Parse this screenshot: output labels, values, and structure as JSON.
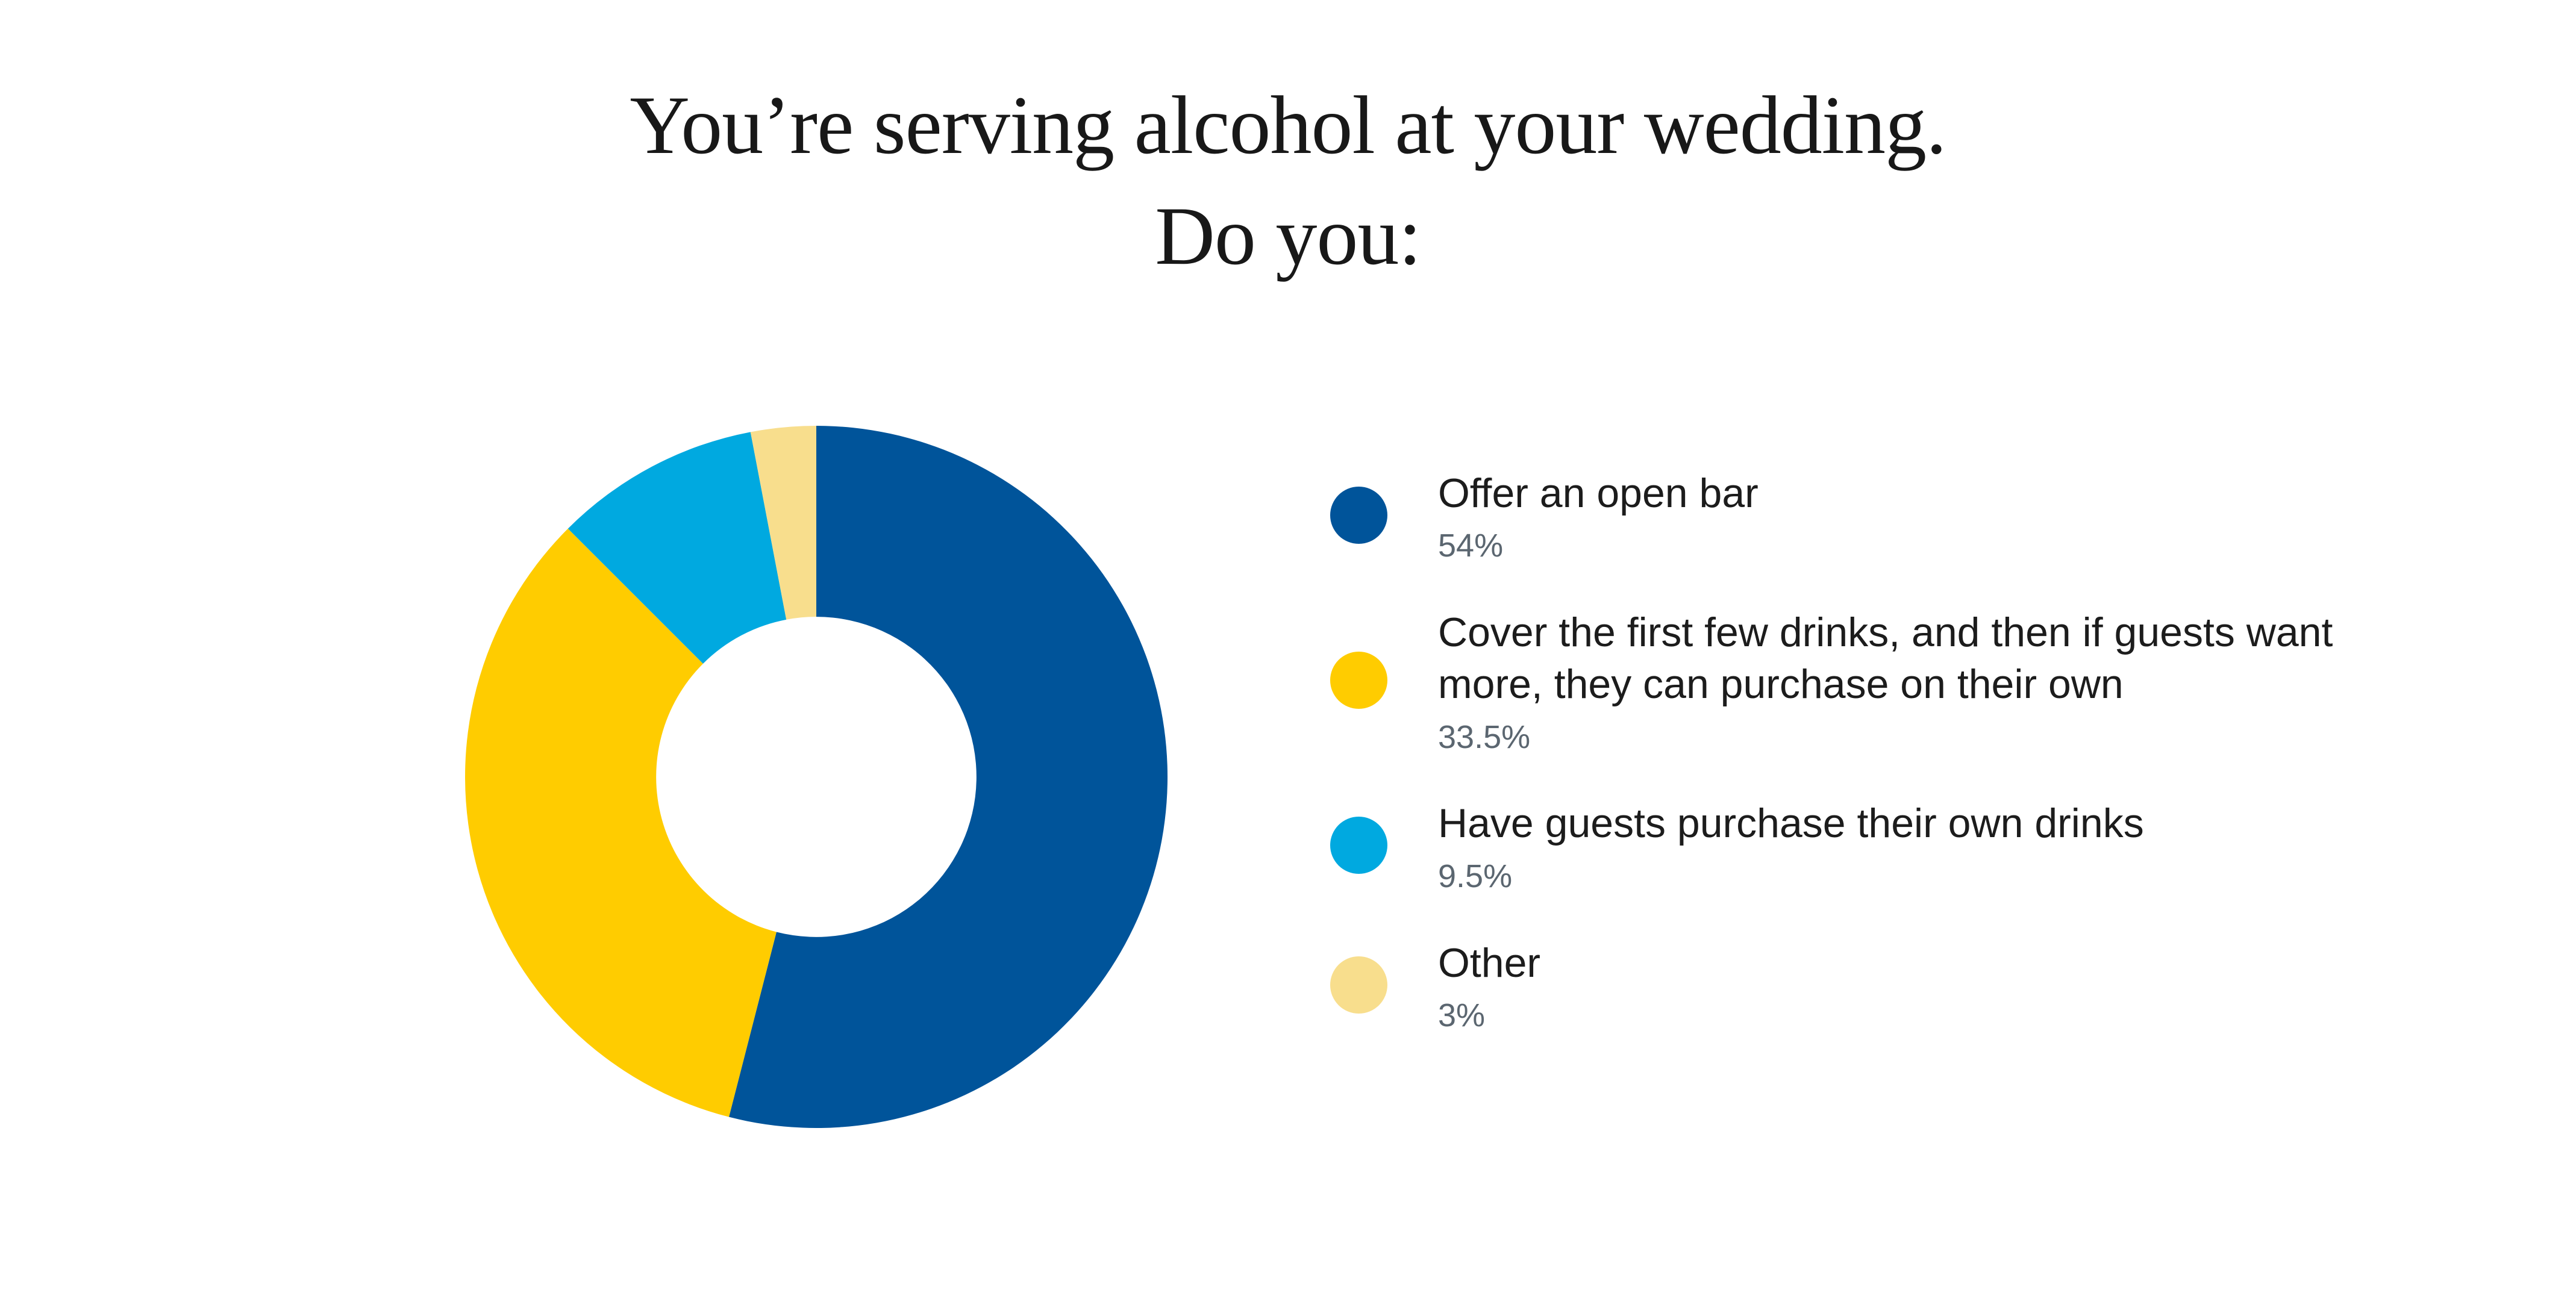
{
  "title": {
    "line1": "You’re serving alcohol at your wedding.",
    "line2": "Do you:"
  },
  "colors": {
    "background": "#ffffff",
    "title_text": "#181818",
    "legend_label_text": "#1c1c1c",
    "percent_label_text": "#5B6670",
    "slice_dark_blue": "#00549A",
    "slice_yellow": "#FFCC00",
    "slice_light_blue": "#00A9E0",
    "slice_cream": "#F8DE8D"
  },
  "chart_data": {
    "type": "pie",
    "variant": "donut",
    "title": "You’re serving alcohol at your wedding. Do you:",
    "legend_position": "right",
    "start_angle_deg_from_top": 0,
    "direction": "clockwise",
    "inner_radius_ratio": 0.456,
    "total": 100,
    "slices": [
      {
        "label": "Offer an open bar",
        "value": 54,
        "pct_label": "54%",
        "color": "#00549A",
        "dot_name": "legend-dot-dark-blue"
      },
      {
        "label": "Cover the first few drinks, and then if guests want more, they can purchase on their own",
        "value": 33.5,
        "pct_label": "33.5%",
        "color": "#FFCC00",
        "dot_name": "legend-dot-yellow"
      },
      {
        "label": "Have guests purchase their own drinks",
        "value": 9.5,
        "pct_label": "9.5%",
        "color": "#00A9E0",
        "dot_name": "legend-dot-light-blue"
      },
      {
        "label": "Other",
        "value": 3,
        "pct_label": "3%",
        "color": "#F8DE8D",
        "dot_name": "legend-dot-cream"
      }
    ]
  }
}
